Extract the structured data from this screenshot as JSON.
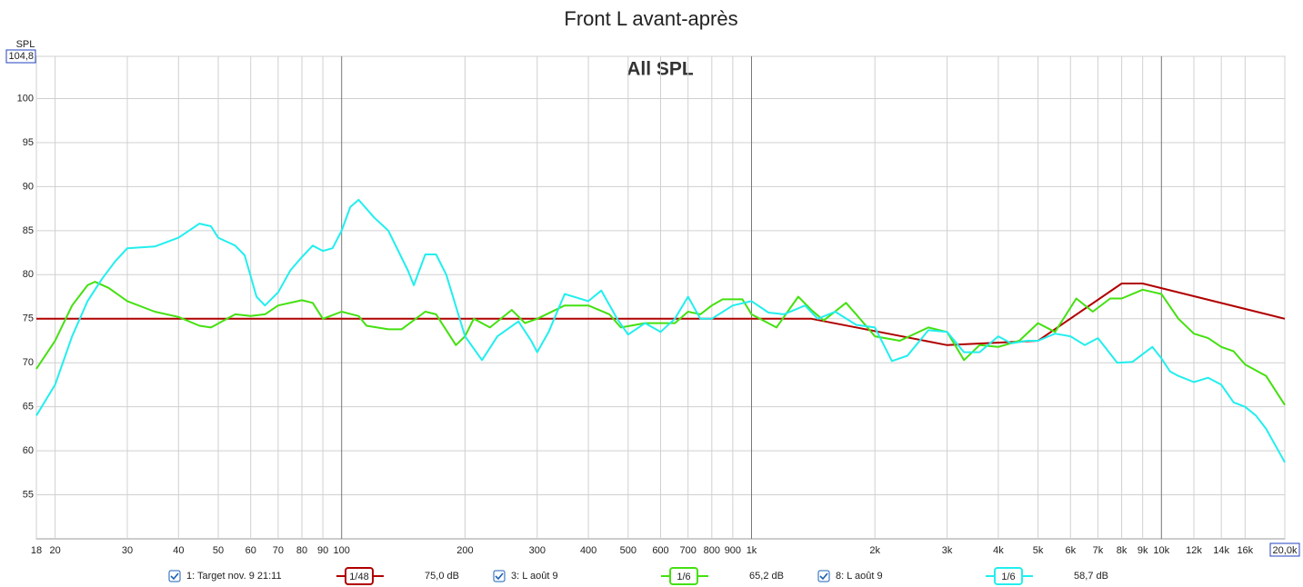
{
  "chart_data": {
    "type": "line",
    "title": "Front L avant-après",
    "annotation": "All SPL",
    "y_label": "SPL",
    "xscale": "log",
    "grid": true,
    "xlim": [
      18,
      20000
    ],
    "ylim": [
      50,
      104.8
    ],
    "xticks": [
      18,
      20,
      30,
      40,
      50,
      60,
      70,
      80,
      90,
      100,
      200,
      300,
      400,
      500,
      600,
      700,
      800,
      900,
      {
        "value": 1000,
        "label": "1k"
      },
      {
        "value": 2000,
        "label": "2k"
      },
      {
        "value": 3000,
        "label": "3k"
      },
      {
        "value": 4000,
        "label": "4k"
      },
      {
        "value": 5000,
        "label": "5k"
      },
      {
        "value": 6000,
        "label": "6k"
      },
      {
        "value": 7000,
        "label": "7k"
      },
      {
        "value": 8000,
        "label": "8k"
      },
      {
        "value": 9000,
        "label": "9k"
      },
      {
        "value": 10000,
        "label": "10k"
      },
      {
        "value": 12000,
        "label": "12k"
      },
      {
        "value": 14000,
        "label": "14k"
      },
      {
        "value": 16000,
        "label": "16k"
      },
      {
        "value": 20000,
        "label": "20,0k"
      }
    ],
    "yticks": [
      55,
      60,
      65,
      70,
      75,
      80,
      85,
      90,
      95,
      100,
      {
        "value": 104.8,
        "label": "104,8"
      }
    ],
    "series": [
      {
        "name": "1: Target nov. 9 21:11",
        "smoothing": "1/48",
        "level": "75,0 dB",
        "color": "#b00000",
        "x": [
          18,
          1400,
          3000,
          5000,
          8000,
          9000,
          20000
        ],
        "values": [
          75,
          75,
          72,
          72.5,
          79,
          79,
          75
        ]
      },
      {
        "name": "3: L août 9",
        "smoothing": "1/6",
        "level": "65,2 dB",
        "color": "#44e010",
        "x": [
          18,
          20,
          22,
          24,
          25,
          27,
          30,
          35,
          40,
          45,
          48,
          55,
          60,
          65,
          70,
          80,
          85,
          90,
          100,
          110,
          115,
          130,
          140,
          160,
          170,
          190,
          200,
          210,
          230,
          260,
          280,
          300,
          350,
          400,
          450,
          480,
          550,
          600,
          650,
          700,
          750,
          800,
          850,
          950,
          1000,
          1150,
          1300,
          1400,
          1500,
          1700,
          1800,
          2000,
          2300,
          2700,
          3000,
          3300,
          3600,
          4000,
          4500,
          5000,
          5500,
          6200,
          6800,
          7500,
          8000,
          9000,
          10000,
          11000,
          12000,
          13000,
          14000,
          15000,
          16000,
          18000,
          20000
        ],
        "values": [
          69.3,
          72.5,
          76.5,
          78.8,
          79.2,
          78.5,
          77,
          75.8,
          75.2,
          74.2,
          74,
          75.5,
          75.3,
          75.5,
          76.5,
          77.1,
          76.8,
          75,
          75.8,
          75.3,
          74.2,
          73.8,
          73.8,
          75.8,
          75.5,
          72,
          73,
          75,
          74,
          76,
          74.5,
          75,
          76.5,
          76.5,
          75.5,
          74,
          74.5,
          74.5,
          74.5,
          75.8,
          75.5,
          76.5,
          77.2,
          77.2,
          75.5,
          74,
          77.5,
          76,
          74.8,
          76.8,
          75.5,
          73,
          72.5,
          74,
          73.5,
          70.3,
          72,
          71.8,
          72.5,
          74.5,
          73.5,
          77.3,
          75.8,
          77.3,
          77.3,
          78.3,
          77.8,
          75,
          73.3,
          72.8,
          71.8,
          71.3,
          69.8,
          68.5,
          65.2
        ]
      },
      {
        "name": "8: L août 9",
        "smoothing": "1/6",
        "level": "58,7 dB",
        "color": "#22eeee",
        "x": [
          18,
          20,
          22,
          24,
          26,
          28,
          30,
          35,
          40,
          45,
          48,
          50,
          55,
          58,
          62,
          65,
          70,
          75,
          80,
          85,
          90,
          95,
          100,
          105,
          110,
          120,
          130,
          145,
          150,
          160,
          170,
          180,
          200,
          220,
          240,
          270,
          290,
          300,
          320,
          350,
          400,
          430,
          470,
          500,
          550,
          600,
          650,
          700,
          750,
          800,
          900,
          1000,
          1100,
          1200,
          1350,
          1450,
          1600,
          1800,
          2000,
          2200,
          2400,
          2700,
          3000,
          3300,
          3600,
          4000,
          4300,
          4700,
          5000,
          5500,
          6000,
          6500,
          7000,
          7800,
          8500,
          9500,
          10000,
          10500,
          11000,
          12000,
          13000,
          14000,
          15000,
          16000,
          17000,
          18000,
          20000
        ],
        "values": [
          64,
          67.5,
          73,
          77,
          79.5,
          81.5,
          83,
          83.2,
          84.2,
          85.8,
          85.5,
          84.2,
          83.3,
          82.2,
          77.5,
          76.5,
          78,
          80.5,
          82,
          83.3,
          82.7,
          83,
          85,
          87.7,
          88.5,
          86.5,
          85,
          80.5,
          78.8,
          82.3,
          82.3,
          80,
          73,
          70.3,
          73,
          74.7,
          72.5,
          71.2,
          73.5,
          77.8,
          77,
          78.2,
          75,
          73.2,
          74.5,
          73.5,
          75,
          77.5,
          75,
          75,
          76.5,
          77,
          75.7,
          75.5,
          76.5,
          75,
          75.8,
          74.3,
          74,
          70.2,
          70.8,
          73.7,
          73.5,
          71.2,
          71.2,
          73,
          72.2,
          72.5,
          72.5,
          73.3,
          73,
          72,
          72.8,
          70,
          70.1,
          71.8,
          70.5,
          69,
          68.5,
          67.8,
          68.3,
          67.5,
          65.5,
          65,
          64,
          62.5,
          58.7
        ]
      }
    ]
  }
}
